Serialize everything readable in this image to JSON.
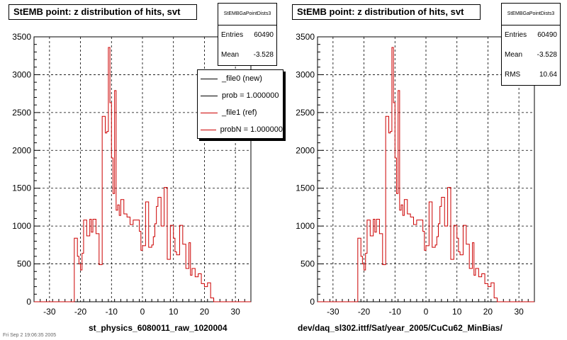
{
  "pads": [
    {
      "title": "StEMB point: z distribution of hits, svt",
      "stats": {
        "name": "StEMBGaPointDists3",
        "rows": [
          {
            "label": "Entries",
            "value": "60490"
          },
          {
            "label": "Mean",
            "value": "-3.528"
          }
        ]
      },
      "legend": [
        {
          "label": "_file0 (new)",
          "color": "#000000"
        },
        {
          "label": "prob = 1.000000",
          "color": "#000000"
        },
        {
          "label": "_file1 (ref)",
          "color": "#cc0000"
        },
        {
          "label": "probN = 1.000000",
          "color": "#cc0000"
        }
      ],
      "xlabel": "st_physics_6080011_raw_1020004"
    },
    {
      "title": "StEMB point: z distribution of hits, svt",
      "stats": {
        "name": "StEMBGaPointDists3",
        "rows": [
          {
            "label": "Entries",
            "value": "60490"
          },
          {
            "label": "Mean",
            "value": "-3.528"
          },
          {
            "label": "RMS",
            "value": "10.64"
          }
        ]
      },
      "legend": [],
      "xlabel": "dev/daq_sl302.ittf/Sat/year_2005/CuCu62_MinBias/"
    }
  ],
  "footer": "Fri Sep 2 19:06:35 2005",
  "chart_data": {
    "type": "histogram",
    "xlim": [
      -35,
      35
    ],
    "ylim": [
      0,
      3500
    ],
    "xticks": [
      -30,
      -20,
      -10,
      0,
      10,
      20,
      30
    ],
    "yticks": [
      0,
      500,
      1000,
      1500,
      2000,
      2500,
      3000,
      3500
    ],
    "grid": true,
    "line_color": "#cc0000",
    "bin_edges": [
      -35,
      -22,
      -21,
      -20.5,
      -20,
      -19.5,
      -19,
      -18,
      -17,
      -16.5,
      -16,
      -15,
      -14,
      -13,
      -12,
      -11.5,
      -11,
      -10.5,
      -10,
      -9.5,
      -9,
      -8.5,
      -8,
      -7.5,
      -7,
      -6,
      -5,
      -4,
      -3,
      -1,
      -0.5,
      0,
      1,
      2,
      3,
      3.5,
      4,
      4.5,
      5,
      6,
      7,
      8,
      9,
      10,
      10.5,
      11,
      12,
      13,
      14,
      15,
      15.5,
      16,
      17,
      18,
      19,
      20,
      21,
      22,
      23,
      35
    ],
    "values": [
      0,
      840,
      600,
      500,
      420,
      640,
      1080,
      870,
      1090,
      920,
      1090,
      900,
      490,
      2450,
      2230,
      2250,
      3360,
      2630,
      1900,
      1430,
      2790,
      1210,
      1280,
      1140,
      1350,
      1160,
      1120,
      1020,
      1080,
      930,
      680,
      740,
      1320,
      720,
      750,
      860,
      1030,
      1260,
      1380,
      1000,
      1510,
      560,
      1010,
      840,
      660,
      620,
      1010,
      760,
      440,
      780,
      350,
      440,
      330,
      370,
      240,
      200,
      250,
      50,
      0
    ]
  }
}
